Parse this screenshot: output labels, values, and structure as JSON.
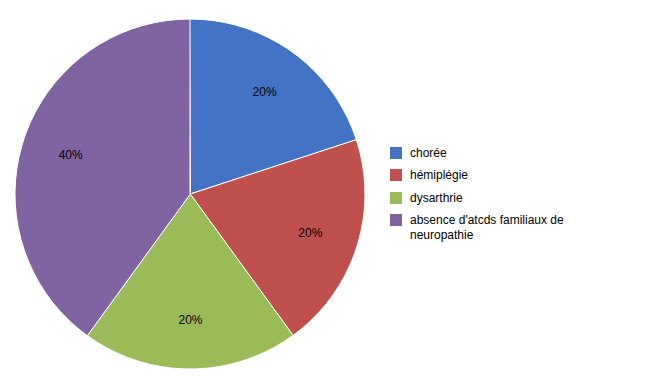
{
  "chart_data": {
    "type": "pie",
    "categories": [
      "chorée",
      "hémiplégie",
      "dysarthrie",
      "absence d'atcds familiaux de\nneuropathie"
    ],
    "values": [
      20,
      20,
      20,
      40
    ],
    "value_labels": [
      "20%",
      "20%",
      "20%",
      "40%"
    ],
    "colors": [
      "#4472C4",
      "#C0504D",
      "#9BBB59",
      "#8064A2"
    ],
    "data_labels": true,
    "legend": "right"
  }
}
